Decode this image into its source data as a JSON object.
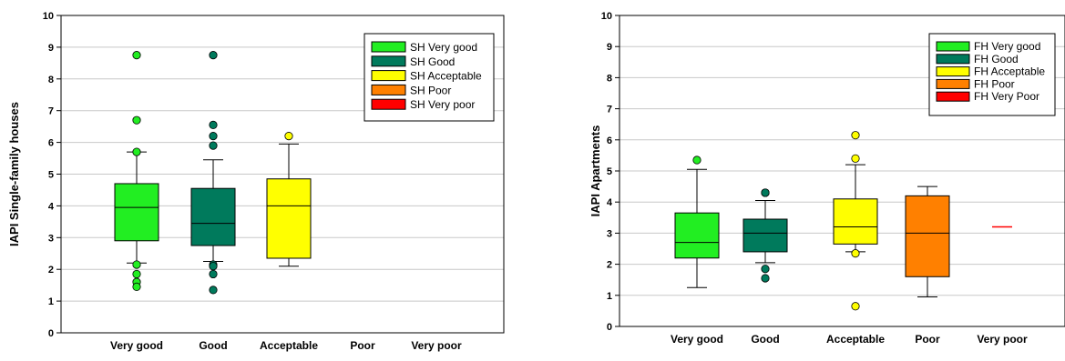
{
  "chart_data": [
    {
      "type": "box",
      "ylabel": "IAPI Single-family houses",
      "ylim": [
        0,
        10
      ],
      "yticks": [
        "0",
        "1",
        "2",
        "3",
        "4",
        "5",
        "6",
        "7",
        "8",
        "9",
        "10"
      ],
      "categories": [
        "Very good",
        "Good",
        "Acceptable",
        "Poor",
        "Very poor"
      ],
      "grid": true,
      "legend_position": "top-right",
      "series": [
        {
          "name": "SH Very good",
          "color": "#22ee22",
          "whisker_low": 2.2,
          "q1": 2.9,
          "median": 3.95,
          "q3": 4.7,
          "whisker_high": 5.7,
          "outliers": [
            8.75,
            6.7,
            5.7,
            2.15,
            1.85,
            1.6,
            1.45
          ]
        },
        {
          "name": "SH Good",
          "color": "#007a5c",
          "whisker_low": 2.25,
          "q1": 2.75,
          "median": 3.45,
          "q3": 4.55,
          "whisker_high": 5.45,
          "outliers": [
            8.75,
            6.55,
            6.2,
            5.9,
            2.15,
            2.1,
            1.85,
            1.35
          ]
        },
        {
          "name": "SH Acceptable",
          "color": "#ffff00",
          "whisker_low": 2.1,
          "q1": 2.35,
          "median": 4.0,
          "q3": 4.85,
          "whisker_high": 5.95,
          "outliers": [
            6.2
          ]
        },
        {
          "name": "SH Poor",
          "color": "#ff8000",
          "whisker_low": null,
          "q1": null,
          "median": null,
          "q3": null,
          "whisker_high": null,
          "outliers": []
        },
        {
          "name": "SH Very poor",
          "color": "#ff0000",
          "whisker_low": null,
          "q1": null,
          "median": null,
          "q3": null,
          "whisker_high": null,
          "outliers": []
        }
      ]
    },
    {
      "type": "box",
      "ylabel": "IAPI Apartments",
      "ylim": [
        0,
        10
      ],
      "yticks": [
        "0",
        "1",
        "2",
        "3",
        "4",
        "5",
        "6",
        "7",
        "8",
        "9",
        "10"
      ],
      "categories": [
        "Very good",
        "Good",
        "Acceptable",
        "Poor",
        "Very poor"
      ],
      "grid": true,
      "legend_position": "top-right",
      "series": [
        {
          "name": "FH Very good",
          "color": "#22ee22",
          "whisker_low": 1.25,
          "q1": 2.2,
          "median": 2.7,
          "q3": 3.65,
          "whisker_high": 5.05,
          "outliers": [
            5.35
          ]
        },
        {
          "name": "FH Good",
          "color": "#007a5c",
          "whisker_low": 2.05,
          "q1": 2.4,
          "median": 3.0,
          "q3": 3.45,
          "whisker_high": 4.05,
          "outliers": [
            4.3,
            4.3,
            1.85,
            1.55
          ]
        },
        {
          "name": "FH Acceptable",
          "color": "#ffff00",
          "whisker_low": 2.4,
          "q1": 2.65,
          "median": 3.2,
          "q3": 4.1,
          "whisker_high": 5.2,
          "outliers": [
            6.15,
            5.4,
            2.35,
            0.65
          ]
        },
        {
          "name": "FH Poor",
          "color": "#ff8000",
          "whisker_low": 0.95,
          "q1": 1.6,
          "median": 3.0,
          "q3": 4.2,
          "whisker_high": 4.5,
          "outliers": []
        },
        {
          "name": "FH Very Poor",
          "color": "#ff0000",
          "whisker_low": null,
          "q1": null,
          "median": 3.2,
          "q3": null,
          "whisker_high": null,
          "outliers": []
        }
      ]
    }
  ]
}
